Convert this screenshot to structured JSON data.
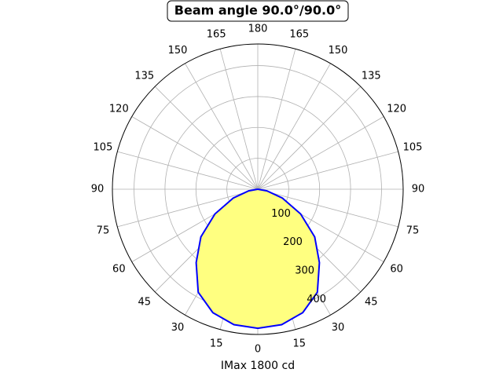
{
  "chart_data": {
    "type": "polar",
    "title": "Beam angle 90.0°/90.0°",
    "xlabel": "IMax 1800 cd",
    "x": [
      -90,
      -80,
      -70,
      -60,
      -50,
      -40,
      -30,
      -20,
      -10,
      0,
      10,
      20,
      30,
      40,
      50,
      60,
      70,
      80,
      90
    ],
    "values": [
      0,
      30,
      85,
      160,
      240,
      310,
      385,
      425,
      445,
      450,
      445,
      425,
      385,
      310,
      240,
      160,
      85,
      30,
      0
    ],
    "color": "#0000ff",
    "fill": "#ffff80",
    "ylim": [
      0,
      470
    ],
    "yticks": [
      100,
      200,
      300,
      400
    ],
    "xticks": [
      0,
      15,
      30,
      45,
      60,
      75,
      90,
      105,
      120,
      135,
      150,
      165,
      180,
      {
        "value": 195,
        "label": "165"
      },
      {
        "value": 210,
        "label": "150"
      },
      {
        "value": 225,
        "label": "135"
      },
      {
        "value": 240,
        "label": "120"
      },
      {
        "value": 255,
        "label": "105"
      },
      {
        "value": 270,
        "label": "90"
      },
      {
        "value": 285,
        "label": "75"
      },
      {
        "value": 300,
        "label": "60"
      },
      {
        "value": 315,
        "label": "45"
      },
      {
        "value": 330,
        "label": "30"
      },
      {
        "value": 345,
        "label": "15"
      }
    ],
    "grid": true
  }
}
